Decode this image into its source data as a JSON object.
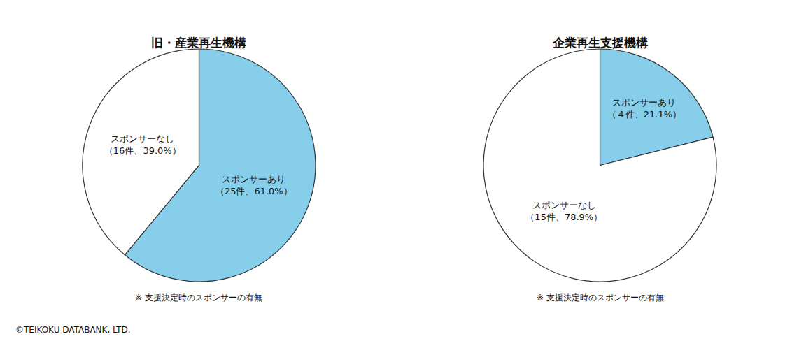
{
  "chart_data": [
    {
      "type": "pie",
      "title": "旧・産業再生機構",
      "categories": [
        "スポンサーあり",
        "スポンサーなし"
      ],
      "values": [
        61.0,
        39.0
      ],
      "value_labels": [
        "スポンサーあり\n（25件、61.0%）",
        "スポンサーなし\n（16件、39.0%）"
      ],
      "colors": [
        "#87CEEB",
        "#FFFFFF"
      ],
      "data_labels": true,
      "annotations": [
        "※ 支援決定時のスポンサーの有無",
        "©TEIKOKU DATABANK, LTD."
      ]
    },
    {
      "type": "pie",
      "title": "企業再生支援機構",
      "categories": [
        "スポンサーあり",
        "スポンサーなし"
      ],
      "values": [
        21.1,
        78.9
      ],
      "value_labels": [
        "スポンサーあり\n（４件、21.1%）",
        "スポンサーなし\n（15件、78.9%）"
      ],
      "colors": [
        "#87CEEB",
        "#FFFFFF"
      ],
      "data_labels": true,
      "annotations": [
        "※ 支援決定時のスポンサーの有無"
      ]
    }
  ]
}
